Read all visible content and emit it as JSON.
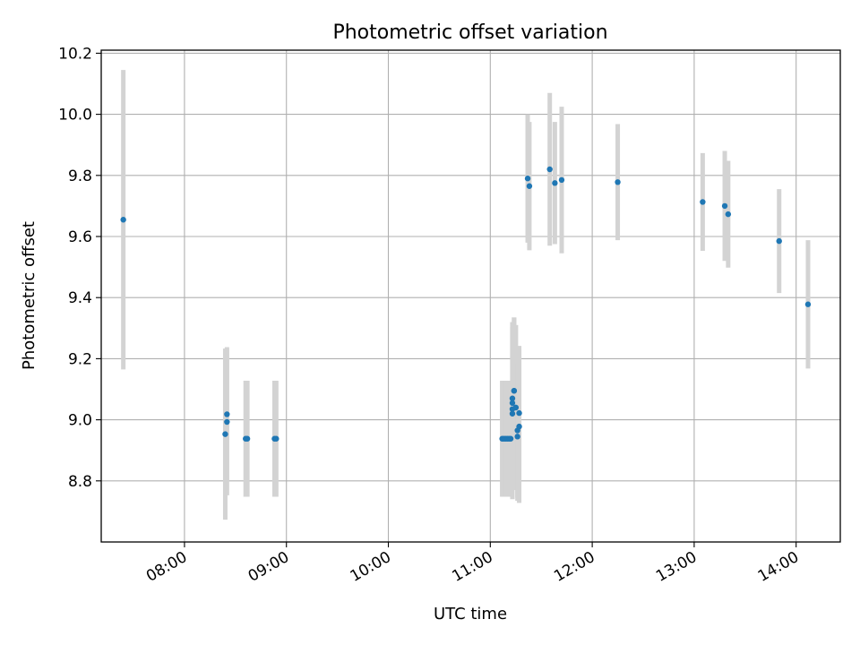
{
  "chart_data": {
    "type": "scatter",
    "title": "Photometric offset variation",
    "xlabel": "UTC time",
    "ylabel": "Photometric offset",
    "xlim": [
      "07:11",
      "14:26"
    ],
    "ylim": [
      8.6,
      10.21
    ],
    "x_ticks": [
      "08:00",
      "09:00",
      "10:00",
      "11:00",
      "12:00",
      "13:00",
      "14:00"
    ],
    "y_ticks": [
      "8.8",
      "9.0",
      "9.2",
      "9.4",
      "9.6",
      "9.8",
      "10.0",
      "10.2"
    ],
    "grid": true,
    "colors": {
      "points": "#1f77b4",
      "error_bars": "#d3d3d3",
      "grid": "#b0b0b0"
    },
    "points": [
      {
        "x": "07:24",
        "y": 9.655,
        "err": 0.49
      },
      {
        "x": "08:24",
        "y": 8.953,
        "err": 0.28
      },
      {
        "x": "08:25",
        "y": 9.018,
        "err": 0.22
      },
      {
        "x": "08:25",
        "y": 8.993,
        "err": 0.24
      },
      {
        "x": "08:36",
        "y": 8.938,
        "err": 0.19
      },
      {
        "x": "08:37",
        "y": 8.938,
        "err": 0.19
      },
      {
        "x": "08:53",
        "y": 8.938,
        "err": 0.19
      },
      {
        "x": "08:54",
        "y": 8.938,
        "err": 0.19
      },
      {
        "x": "11:07",
        "y": 8.938,
        "err": 0.19
      },
      {
        "x": "11:08",
        "y": 8.938,
        "err": 0.19
      },
      {
        "x": "11:09",
        "y": 8.938,
        "err": 0.19
      },
      {
        "x": "11:10",
        "y": 8.938,
        "err": 0.19
      },
      {
        "x": "11:11",
        "y": 8.938,
        "err": 0.19
      },
      {
        "x": "11:12",
        "y": 8.938,
        "err": 0.19
      },
      {
        "x": "11:13",
        "y": 9.035,
        "err": 0.27
      },
      {
        "x": "11:13",
        "y": 9.02,
        "err": 0.28
      },
      {
        "x": "11:13",
        "y": 9.055,
        "err": 0.26
      },
      {
        "x": "11:13",
        "y": 9.07,
        "err": 0.25
      },
      {
        "x": "11:14",
        "y": 9.095,
        "err": 0.24
      },
      {
        "x": "11:14",
        "y": 9.095,
        "err": 0.24
      },
      {
        "x": "11:15",
        "y": 9.04,
        "err": 0.27
      },
      {
        "x": "11:15",
        "y": 9.04,
        "err": 0.27
      },
      {
        "x": "11:16",
        "y": 8.945,
        "err": 0.21
      },
      {
        "x": "11:16",
        "y": 8.965,
        "err": 0.22
      },
      {
        "x": "11:17",
        "y": 8.978,
        "err": 0.25
      },
      {
        "x": "11:17",
        "y": 9.022,
        "err": 0.22
      },
      {
        "x": "11:22",
        "y": 9.79,
        "err": 0.21
      },
      {
        "x": "11:23",
        "y": 9.765,
        "err": 0.21
      },
      {
        "x": "11:35",
        "y": 9.82,
        "err": 0.25
      },
      {
        "x": "11:38",
        "y": 9.775,
        "err": 0.2
      },
      {
        "x": "11:42",
        "y": 9.785,
        "err": 0.24
      },
      {
        "x": "12:15",
        "y": 9.778,
        "err": 0.19
      },
      {
        "x": "13:05",
        "y": 9.713,
        "err": 0.16
      },
      {
        "x": "13:18",
        "y": 9.7,
        "err": 0.18
      },
      {
        "x": "13:20",
        "y": 9.673,
        "err": 0.175
      },
      {
        "x": "13:50",
        "y": 9.585,
        "err": 0.17
      },
      {
        "x": "14:07",
        "y": 9.378,
        "err": 0.21
      }
    ]
  }
}
